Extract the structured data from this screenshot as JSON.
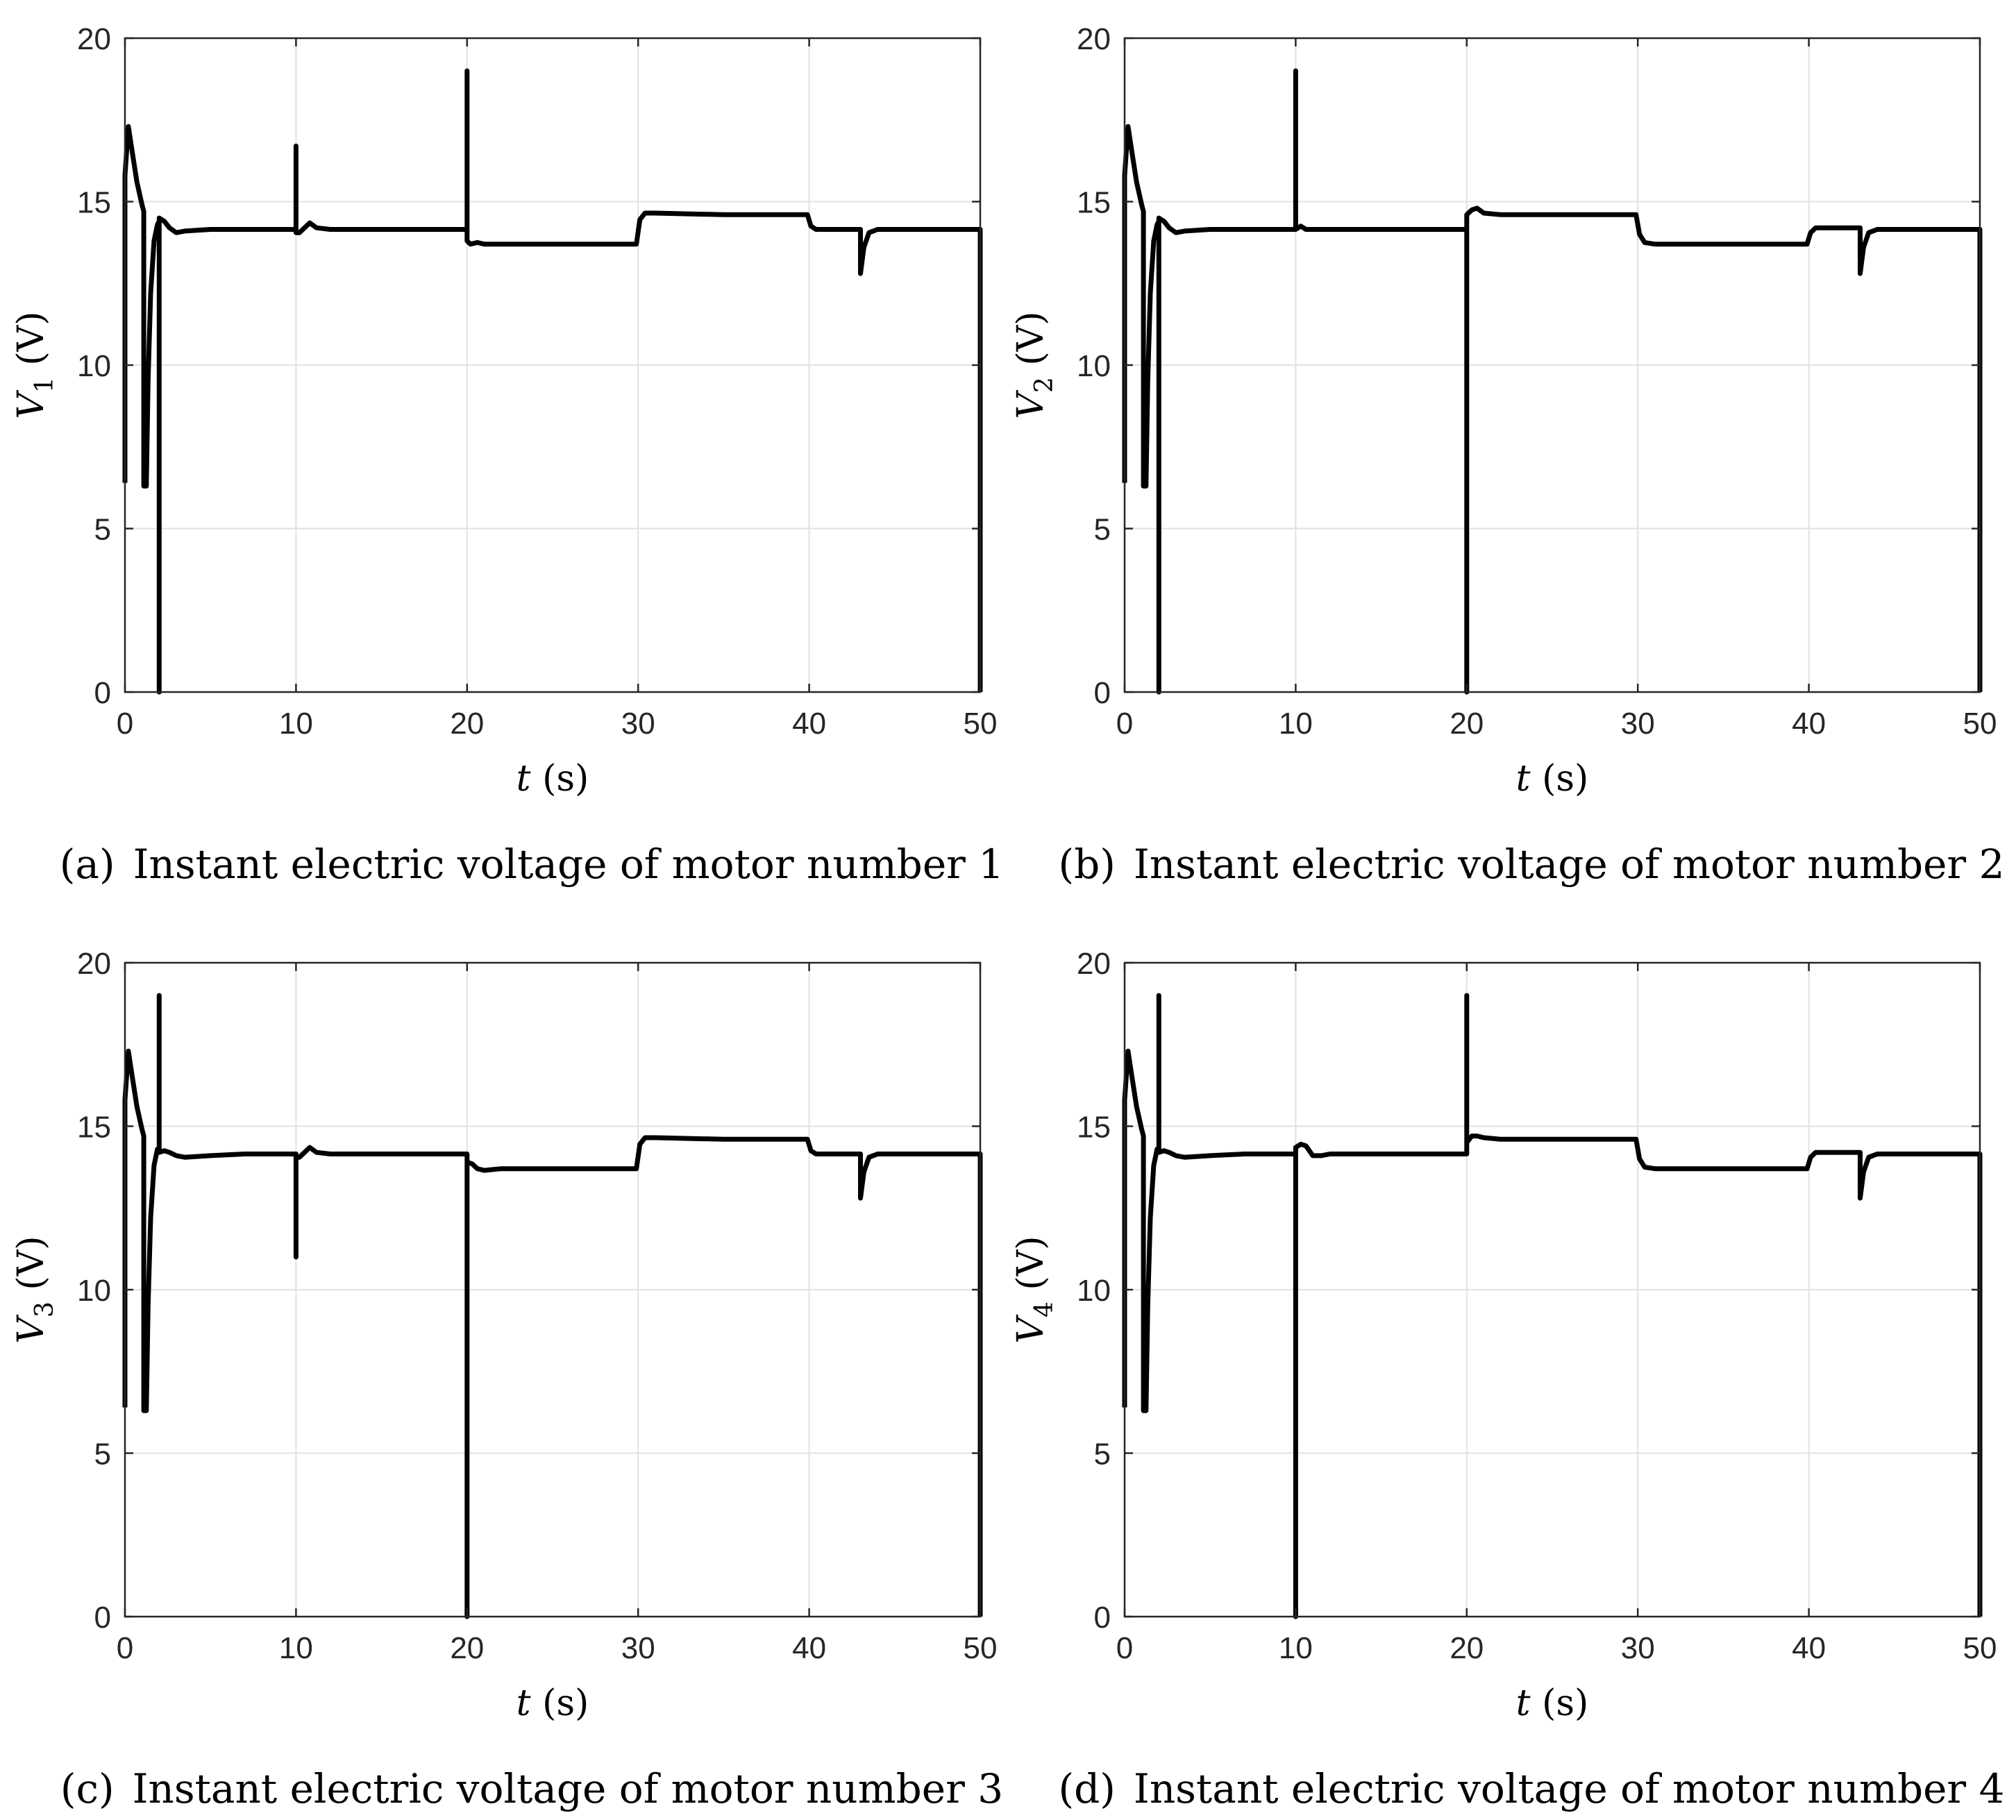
{
  "colors": {
    "line": "#000000",
    "grid": "#e1e1e1",
    "axes": "#262626",
    "background": "#ffffff"
  },
  "chart_data": [
    {
      "type": "line",
      "caption_label": "(a)",
      "caption_text": "Instant electric voltage of motor number 1",
      "ylabel_sym": "V",
      "ylabel_sub": "1",
      "ylabel_unit": " (V)",
      "xlabel_sym": "t",
      "xlabel_unit": " (s)",
      "xlim": [
        0,
        50
      ],
      "ylim": [
        0,
        20
      ],
      "xticks": [
        0,
        10,
        20,
        30,
        40,
        50
      ],
      "yticks": [
        0,
        5,
        10,
        15,
        20
      ],
      "grid": true,
      "series": [
        {
          "name": "V1",
          "x": [
            0,
            0,
            0.2,
            0.4,
            0.7,
            1.0,
            1.1,
            1.1,
            1.25,
            1.35,
            1.5,
            1.7,
            1.9,
            2.0,
            2.0,
            2.0,
            2.3,
            2.6,
            3.0,
            3.5,
            5,
            7,
            10,
            10,
            10,
            10.2,
            10.5,
            10.8,
            11.2,
            12,
            15,
            20,
            20,
            20,
            20.2,
            20.6,
            21,
            22,
            25,
            29.9,
            30.1,
            30.4,
            31,
            35,
            39.9,
            40.1,
            40.4,
            41,
            43,
            43,
            43.2,
            43.5,
            44,
            45,
            50,
            50
          ],
          "values": [
            6.4,
            15.8,
            17.3,
            16.6,
            15.6,
            14.9,
            14.7,
            6.3,
            6.3,
            9.5,
            12.2,
            13.8,
            14.3,
            14.4,
            0,
            14.5,
            14.4,
            14.2,
            14.05,
            14.1,
            14.15,
            14.15,
            14.15,
            16.7,
            14.05,
            14.05,
            14.2,
            14.35,
            14.2,
            14.15,
            14.15,
            14.15,
            19.0,
            13.8,
            13.7,
            13.75,
            13.7,
            13.7,
            13.7,
            13.7,
            14.45,
            14.65,
            14.65,
            14.6,
            14.6,
            14.25,
            14.15,
            14.15,
            14.15,
            12.8,
            13.6,
            14.05,
            14.15,
            14.15,
            14.15,
            0
          ]
        }
      ]
    },
    {
      "type": "line",
      "caption_label": "(b)",
      "caption_text": "Instant electric voltage of motor number 2",
      "ylabel_sym": "V",
      "ylabel_sub": "2",
      "ylabel_unit": " (V)",
      "xlabel_sym": "t",
      "xlabel_unit": " (s)",
      "xlim": [
        0,
        50
      ],
      "ylim": [
        0,
        20
      ],
      "xticks": [
        0,
        10,
        20,
        30,
        40,
        50
      ],
      "yticks": [
        0,
        5,
        10,
        15,
        20
      ],
      "grid": true,
      "series": [
        {
          "name": "V2",
          "x": [
            0,
            0,
            0.2,
            0.4,
            0.7,
            1.0,
            1.1,
            1.1,
            1.25,
            1.35,
            1.5,
            1.7,
            1.9,
            2.0,
            2.0,
            2.0,
            2.3,
            2.6,
            3.0,
            3.5,
            5,
            7,
            10,
            10,
            10,
            10.3,
            10.6,
            11,
            12,
            15,
            20,
            20,
            20,
            20.3,
            20.6,
            21,
            22,
            25,
            29.9,
            30.1,
            30.4,
            31,
            35,
            39.9,
            40.1,
            40.4,
            41,
            43,
            43,
            43.2,
            43.5,
            44,
            45,
            50,
            50
          ],
          "values": [
            6.4,
            15.8,
            17.3,
            16.6,
            15.6,
            14.9,
            14.7,
            6.3,
            6.3,
            9.5,
            12.2,
            13.8,
            14.3,
            14.4,
            0,
            14.5,
            14.4,
            14.2,
            14.05,
            14.1,
            14.15,
            14.15,
            14.15,
            19.0,
            14.15,
            14.25,
            14.15,
            14.15,
            14.15,
            14.15,
            14.15,
            0,
            14.6,
            14.75,
            14.8,
            14.65,
            14.6,
            14.6,
            14.6,
            14.0,
            13.75,
            13.7,
            13.7,
            13.7,
            14.05,
            14.2,
            14.2,
            14.2,
            12.8,
            13.6,
            14.05,
            14.15,
            14.15,
            14.15,
            0
          ]
        }
      ]
    },
    {
      "type": "line",
      "caption_label": "(c)",
      "caption_text": "Instant electric voltage of motor number 3",
      "ylabel_sym": "V",
      "ylabel_sub": "3",
      "ylabel_unit": " (V)",
      "xlabel_sym": "t",
      "xlabel_unit": " (s)",
      "xlim": [
        0,
        50
      ],
      "ylim": [
        0,
        20
      ],
      "xticks": [
        0,
        10,
        20,
        30,
        40,
        50
      ],
      "yticks": [
        0,
        5,
        10,
        15,
        20
      ],
      "grid": true,
      "series": [
        {
          "name": "V3",
          "x": [
            0,
            0,
            0.2,
            0.4,
            0.7,
            1.0,
            1.1,
            1.1,
            1.25,
            1.35,
            1.5,
            1.7,
            1.9,
            2.0,
            2.0,
            2.0,
            2.3,
            2.6,
            3.0,
            3.5,
            5,
            7,
            10,
            10,
            10,
            10.2,
            10.5,
            10.8,
            11.2,
            12,
            15,
            20,
            20,
            20,
            20.3,
            20.6,
            21,
            22,
            25,
            29.9,
            30.1,
            30.4,
            31,
            35,
            39.9,
            40.1,
            40.4,
            41,
            43,
            43,
            43.2,
            43.5,
            44,
            45,
            50,
            50
          ],
          "values": [
            6.4,
            15.8,
            17.3,
            16.6,
            15.6,
            14.9,
            14.7,
            6.3,
            6.3,
            9.5,
            12.2,
            13.8,
            14.3,
            14.3,
            19.0,
            14.2,
            14.25,
            14.2,
            14.1,
            14.05,
            14.1,
            14.15,
            14.15,
            11.0,
            14.05,
            14.05,
            14.2,
            14.35,
            14.2,
            14.15,
            14.15,
            14.15,
            0,
            13.9,
            13.85,
            13.7,
            13.65,
            13.7,
            13.7,
            13.7,
            14.45,
            14.65,
            14.65,
            14.6,
            14.6,
            14.25,
            14.15,
            14.15,
            14.15,
            12.8,
            13.6,
            14.05,
            14.15,
            14.15,
            14.15,
            0
          ]
        }
      ]
    },
    {
      "type": "line",
      "caption_label": "(d)",
      "caption_text": "Instant electric voltage of motor number 4",
      "ylabel_sym": "V",
      "ylabel_sub": "4",
      "ylabel_unit": " (V)",
      "xlabel_sym": "t",
      "xlabel_unit": " (s)",
      "xlim": [
        0,
        50
      ],
      "ylim": [
        0,
        20
      ],
      "xticks": [
        0,
        10,
        20,
        30,
        40,
        50
      ],
      "yticks": [
        0,
        5,
        10,
        15,
        20
      ],
      "grid": true,
      "series": [
        {
          "name": "V4",
          "x": [
            0,
            0,
            0.2,
            0.4,
            0.7,
            1.0,
            1.1,
            1.1,
            1.25,
            1.35,
            1.5,
            1.7,
            1.9,
            2.0,
            2.0,
            2.0,
            2.3,
            2.6,
            3.0,
            3.5,
            5,
            7,
            10,
            10,
            10,
            10.3,
            10.6,
            11,
            11.5,
            12,
            15,
            20,
            20,
            20,
            20.3,
            20.6,
            21,
            22,
            25,
            29.9,
            30.1,
            30.4,
            31,
            35,
            39.9,
            40.1,
            40.4,
            41,
            43,
            43,
            43.2,
            43.5,
            44,
            45,
            50,
            50
          ],
          "values": [
            6.4,
            15.8,
            17.3,
            16.6,
            15.6,
            14.9,
            14.7,
            6.3,
            6.3,
            9.5,
            12.2,
            13.8,
            14.3,
            14.3,
            19.0,
            14.2,
            14.25,
            14.2,
            14.1,
            14.05,
            14.1,
            14.15,
            14.15,
            0,
            14.35,
            14.45,
            14.4,
            14.1,
            14.1,
            14.15,
            14.15,
            14.15,
            19.0,
            14.5,
            14.7,
            14.7,
            14.65,
            14.6,
            14.6,
            14.6,
            14.0,
            13.75,
            13.7,
            13.7,
            13.7,
            14.05,
            14.2,
            14.2,
            14.2,
            12.8,
            13.6,
            14.05,
            14.15,
            14.15,
            14.15,
            0
          ]
        }
      ]
    }
  ]
}
